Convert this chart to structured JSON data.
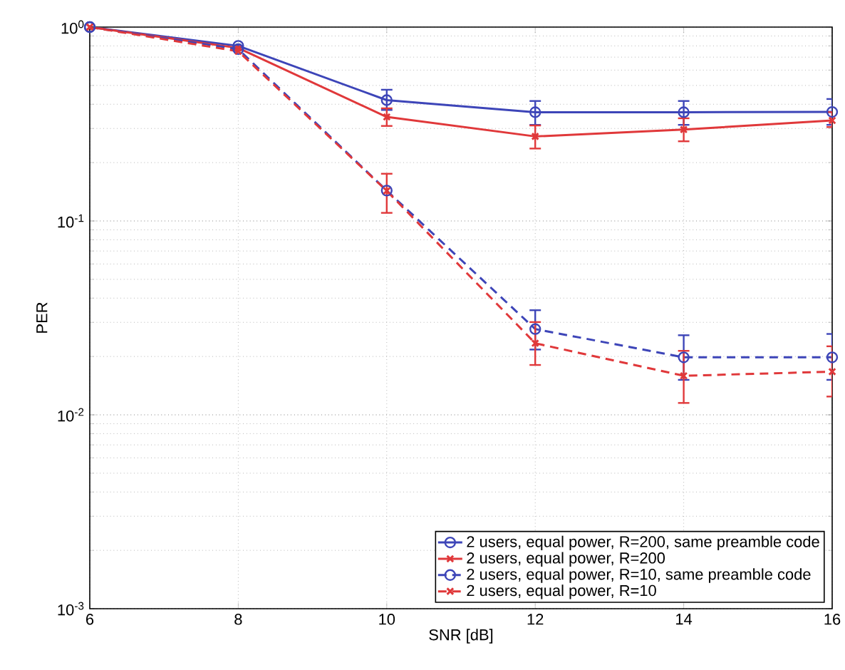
{
  "chart_data": {
    "type": "line",
    "xlabel": "SNR [dB]",
    "ylabel": "PER",
    "log": "y",
    "grid": true,
    "legend": "bottom right",
    "xlim": [
      6,
      16
    ],
    "xticks": [
      6,
      8,
      10,
      12,
      14,
      16
    ],
    "ylim": [
      0.001,
      1
    ],
    "yticks": [
      {
        "value": 0.001,
        "label": "10$^{-3}$"
      },
      {
        "value": 0.01,
        "label": "10$^{-2}$"
      },
      {
        "value": 0.1,
        "label": "10$^{-1}$"
      },
      {
        "value": 1,
        "label": "10$^{0}$"
      }
    ],
    "x": [
      6,
      8,
      10,
      12,
      14,
      16
    ],
    "series": [
      {
        "name": "2 users, equal power, R=200, same preamble code",
        "color": "#3d45b8",
        "marker": "circle",
        "line_style": "solid",
        "values": [
          1,
          0.8,
          0.42,
          0.364,
          0.364,
          0.365
        ],
        "errors": [
          null,
          null,
          [
            0.37,
            0.48
          ],
          [
            0.31,
            0.42
          ],
          [
            0.31,
            0.42
          ],
          [
            0.31,
            0.43
          ]
        ]
      },
      {
        "name": "2 users, equal power, R=200",
        "color": "#e0383a",
        "marker": "cross",
        "line_style": "solid",
        "values": [
          1,
          0.78,
          0.344,
          0.273,
          0.296,
          0.33
        ],
        "errors": [
          null,
          null,
          [
            0.306,
            0.385
          ],
          [
            0.234,
            0.314
          ],
          [
            0.255,
            0.342
          ],
          [
            0.302,
            0.368
          ]
        ]
      },
      {
        "name": "2 users, equal power, R=10, same preamble code",
        "color": "#3d45b8",
        "marker": "circle",
        "line_style": "dashed",
        "values": [
          1,
          0.77,
          0.1435,
          0.0277,
          0.0198,
          0.0198
        ],
        "errors": [
          null,
          null,
          null,
          [
            0.0215,
            0.035
          ],
          [
            0.015,
            0.026
          ],
          [
            0.015,
            0.0264
          ]
        ]
      },
      {
        "name": "2 users, equal power, R=10",
        "color": "#e0383a",
        "marker": "cross",
        "line_style": "dashed",
        "values": [
          1,
          0.75,
          0.143,
          0.0234,
          0.0159,
          0.0167
        ],
        "errors": [
          null,
          null,
          [
            0.109,
            0.177
          ],
          [
            0.0179,
            0.0304
          ],
          [
            0.0114,
            0.0216
          ],
          [
            0.0123,
            0.0228
          ]
        ]
      }
    ]
  }
}
